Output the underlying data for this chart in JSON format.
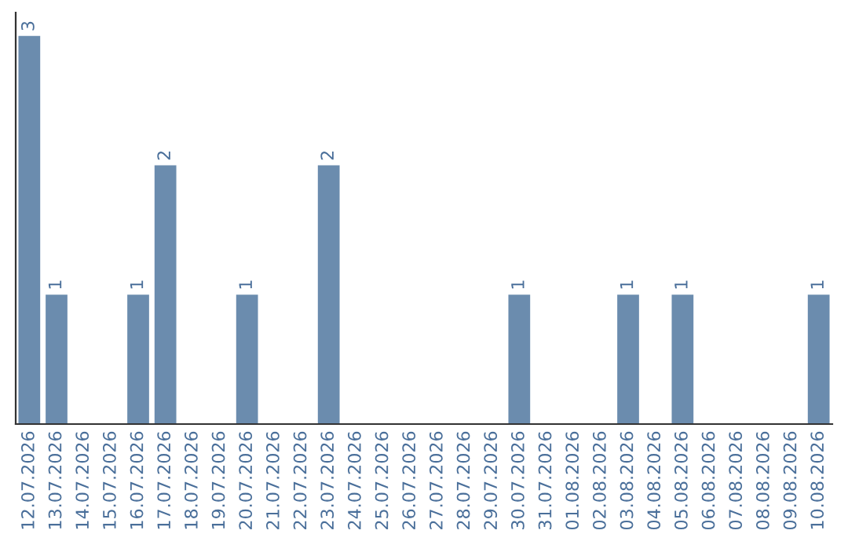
{
  "chart_data": {
    "type": "bar",
    "categories": [
      "12.07.2026",
      "13.07.2026",
      "14.07.2026",
      "15.07.2026",
      "16.07.2026",
      "17.07.2026",
      "18.07.2026",
      "19.07.2026",
      "20.07.2026",
      "21.07.2026",
      "22.07.2026",
      "23.07.2026",
      "24.07.2026",
      "25.07.2026",
      "26.07.2026",
      "27.07.2026",
      "28.07.2026",
      "29.07.2026",
      "30.07.2026",
      "31.07.2026",
      "01.08.2026",
      "02.08.2026",
      "03.08.2026",
      "04.08.2026",
      "05.08.2026",
      "06.08.2026",
      "07.08.2026",
      "08.08.2026",
      "09.08.2026",
      "10.08.2026"
    ],
    "values": [
      3,
      1,
      0,
      0,
      1,
      2,
      0,
      0,
      1,
      0,
      0,
      2,
      0,
      0,
      0,
      0,
      0,
      0,
      1,
      0,
      0,
      0,
      1,
      0,
      1,
      0,
      0,
      0,
      0,
      1
    ],
    "value_labels": [
      "3",
      "1",
      null,
      null,
      "1",
      "2",
      null,
      null,
      "1",
      null,
      null,
      "2",
      null,
      null,
      null,
      null,
      null,
      null,
      "1",
      null,
      null,
      null,
      "1",
      null,
      "1",
      null,
      null,
      null,
      null,
      "1"
    ],
    "color": "#6b8cae",
    "tick_labels": "x",
    "grid": false,
    "legend": false
  }
}
